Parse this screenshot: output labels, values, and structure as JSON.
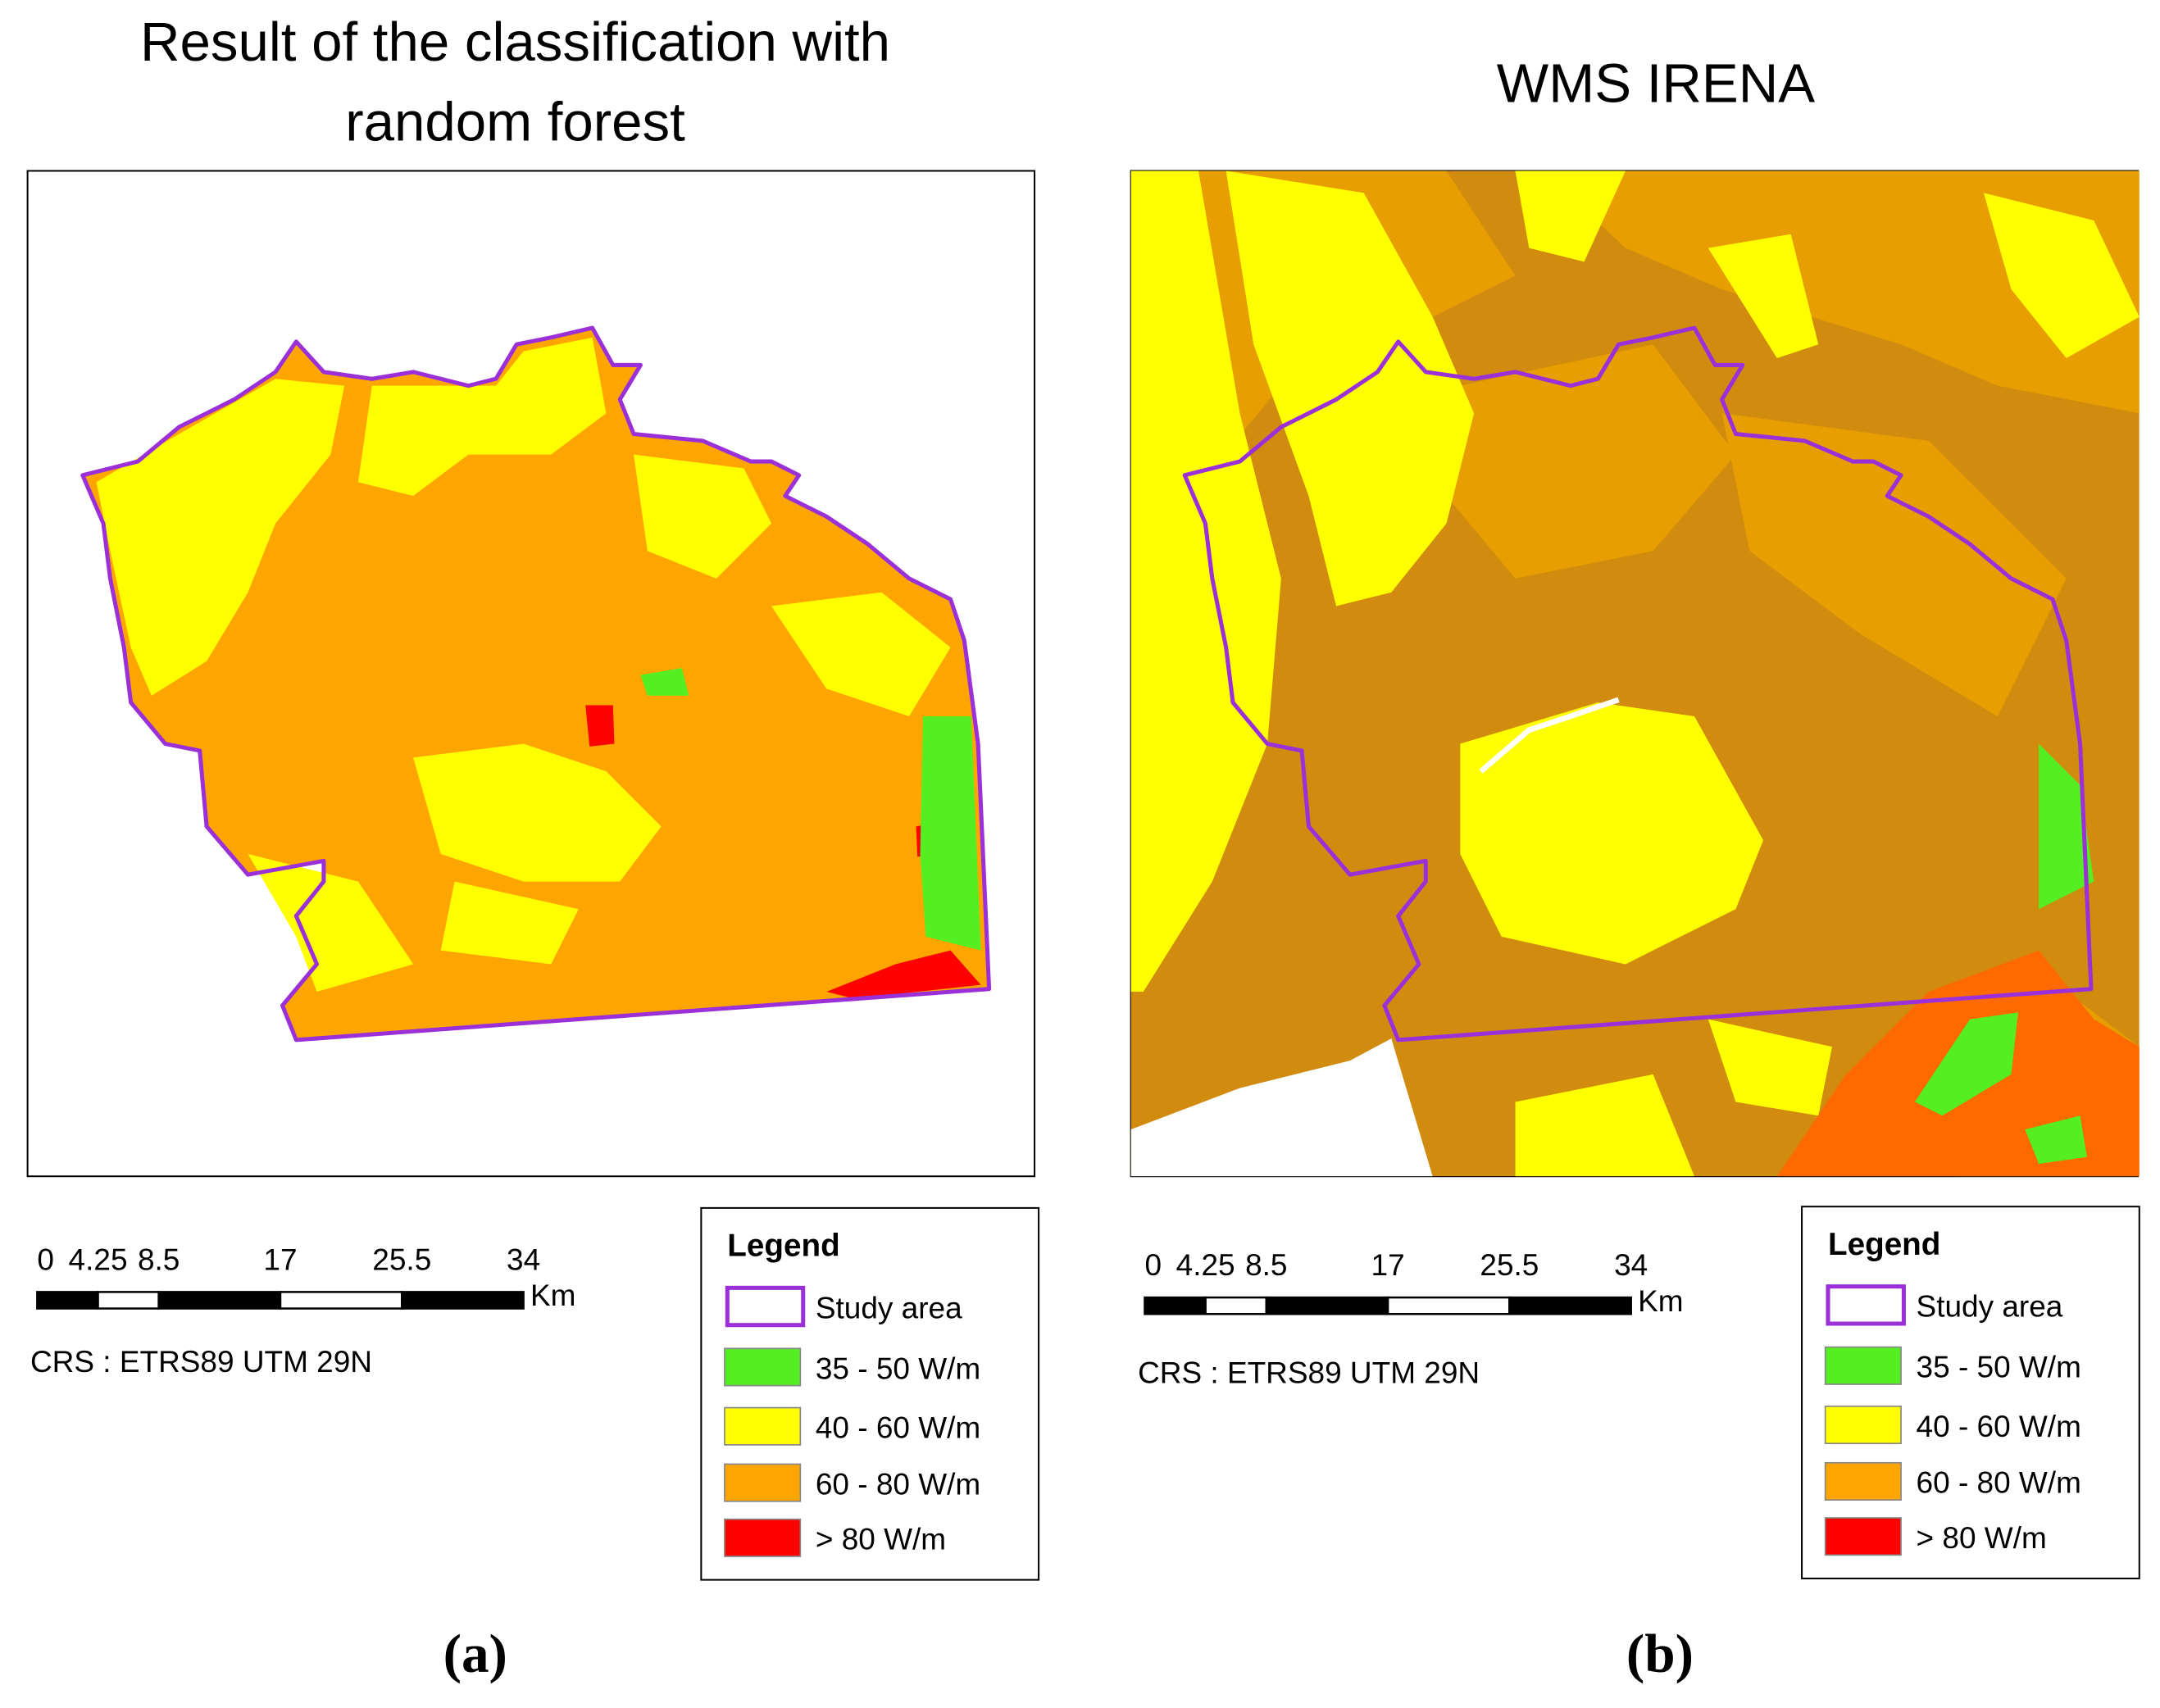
{
  "panels": [
    {
      "title": [
        "Result of the classification with",
        "random forest"
      ],
      "scale_bar": {
        "ticks": [
          0,
          4.25,
          8.5,
          17,
          25.5,
          34
        ],
        "unit": "Km"
      },
      "crs": "CRS : ETRS89 UTM 29N",
      "legend": {
        "title": "Legend",
        "entries": [
          {
            "label": "Study area",
            "color": "#9b30d9",
            "style": "outline"
          },
          {
            "label": "35 - 50 W/m",
            "color": "#55ee22",
            "style": "fill"
          },
          {
            "label": "40 - 60 W/m",
            "color": "#ffff00",
            "style": "fill"
          },
          {
            "label": "60 - 80 W/m",
            "color": "#ffa500",
            "style": "fill"
          },
          {
            "label": "> 80 W/m",
            "color": "#ff0000",
            "style": "fill"
          }
        ]
      },
      "caption": "(a)"
    },
    {
      "title": [
        "WMS IRENA"
      ],
      "scale_bar": {
        "ticks": [
          0,
          4.25,
          8.5,
          17,
          25.5,
          34
        ],
        "unit": "Km"
      },
      "crs": "CRS : ETRS89 UTM 29N",
      "legend": {
        "title": "Legend",
        "entries": [
          {
            "label": "Study area",
            "color": "#9b30d9",
            "style": "outline"
          },
          {
            "label": "35 - 50 W/m",
            "color": "#55ee22",
            "style": "fill"
          },
          {
            "label": "40 - 60 W/m",
            "color": "#ffff00",
            "style": "fill"
          },
          {
            "label": "60 - 80 W/m",
            "color": "#ffa500",
            "style": "fill"
          },
          {
            "label": "> 80 W/m",
            "color": "#ff0000",
            "style": "fill"
          }
        ]
      },
      "caption": "(b)"
    }
  ]
}
